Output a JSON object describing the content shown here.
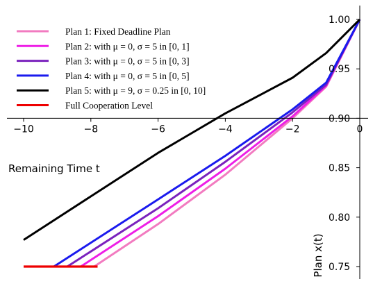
{
  "chart_data": {
    "type": "line",
    "xlabel": "Remaining Time t",
    "ylabel": "Plan x(t)",
    "xlim": [
      -10.5,
      0.2
    ],
    "ylim": [
      0.74,
      1.01
    ],
    "xticks": [
      -10,
      -8,
      -6,
      -4,
      -2,
      0
    ],
    "xtick_labels": [
      "−10",
      "−8",
      "−6",
      "−4",
      "−2",
      "0"
    ],
    "yticks": [
      0.75,
      0.8,
      0.85,
      0.9,
      0.95,
      1.0
    ],
    "ytick_labels": [
      "0.75",
      "0.80",
      "0.85",
      "0.90",
      "0.95",
      "1.00"
    ],
    "legend_position": "upper-left",
    "series": [
      {
        "name": "Plan 1: Fixed Deadline Plan",
        "color": "#f27bc0",
        "x": [
          -7.9,
          -6,
          -4,
          -2,
          -1,
          0
        ],
        "y": [
          0.75,
          0.793,
          0.843,
          0.9,
          0.932,
          1.0
        ]
      },
      {
        "name": "Plan 2: with μ = 0, σ = 5 in [0, 1]",
        "color": "#ee1ee6",
        "x": [
          -8.3,
          -6,
          -4,
          -2,
          -1,
          0
        ],
        "y": [
          0.75,
          0.801,
          0.849,
          0.902,
          0.933,
          1.0
        ]
      },
      {
        "name": "Plan 3: with μ = 0, σ = 5 in [0, 3]",
        "color": "#7a22bd",
        "x": [
          -8.7,
          -6,
          -4,
          -2,
          -1,
          0
        ],
        "y": [
          0.75,
          0.809,
          0.856,
          0.906,
          0.934,
          1.0
        ]
      },
      {
        "name": "Plan 4: with μ = 0, σ = 5 in [0, 5]",
        "color": "#1a1aee",
        "x": [
          -9.1,
          -6,
          -4,
          -2,
          -1,
          0
        ],
        "y": [
          0.75,
          0.818,
          0.862,
          0.909,
          0.936,
          1.0
        ]
      },
      {
        "name": "Plan 5: with μ = 9, σ = 0.25 in [0, 10]",
        "color": "#000000",
        "x": [
          -10,
          -8,
          -6,
          -4,
          -2,
          -1,
          0
        ],
        "y": [
          0.777,
          0.821,
          0.865,
          0.905,
          0.941,
          0.966,
          1.0
        ]
      },
      {
        "name": "Full Cooperation Level",
        "color": "#ee0000",
        "x": [
          -10,
          -7.8
        ],
        "y": [
          0.75,
          0.75
        ]
      }
    ]
  }
}
